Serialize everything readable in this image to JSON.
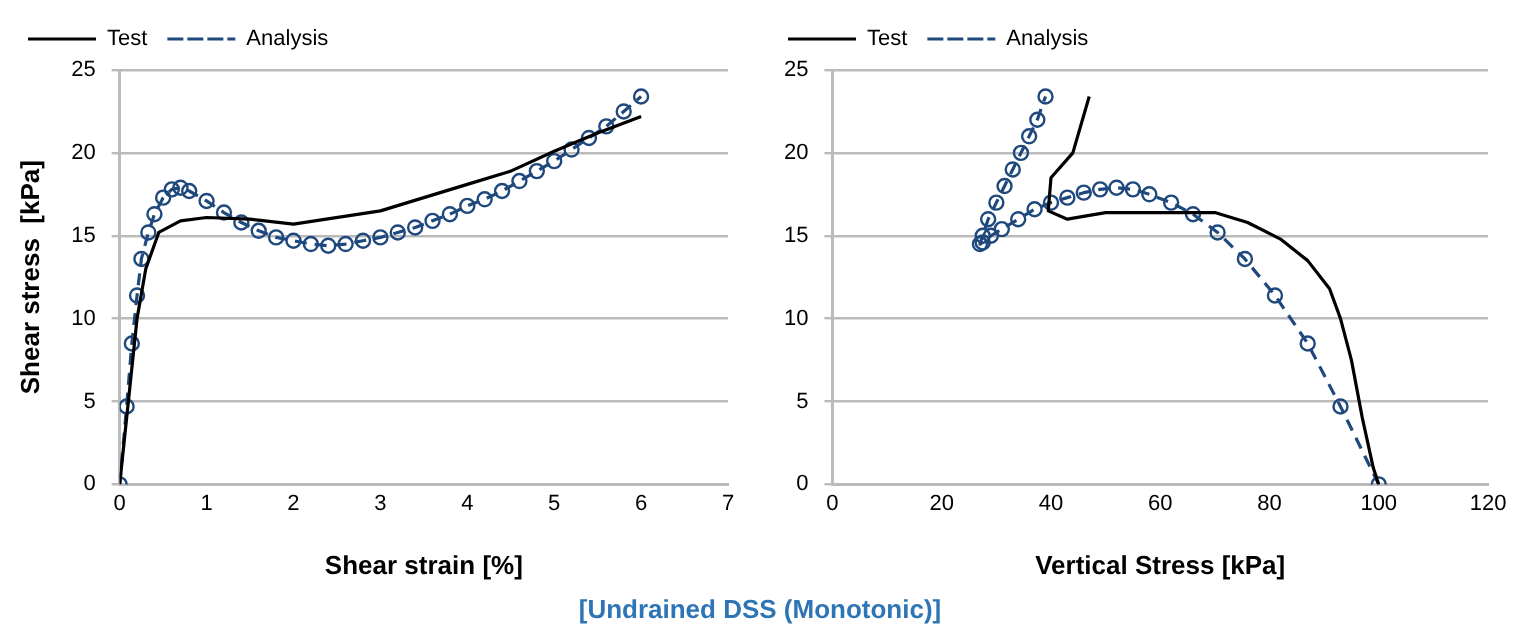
{
  "chart_data": [
    {
      "type": "line",
      "xlabel": "Shear strain [%]",
      "ylabel": "Shear stress  [kPa]",
      "xlim": [
        0,
        7
      ],
      "xticks": [
        0,
        1,
        2,
        3,
        4,
        5,
        6,
        7
      ],
      "ylim": [
        0,
        25
      ],
      "yticks": [
        0,
        5,
        10,
        15,
        20,
        25
      ],
      "grid": "y",
      "legend": "top left",
      "annotations": [
        "[Undrained DSS (Monotonic)]"
      ],
      "series": [
        {
          "name": "Test",
          "color": "#000000",
          "line_style": "solid",
          "marker": "none",
          "x": [
            0,
            0.1,
            0.2,
            0.3,
            0.45,
            0.7,
            1,
            1.5,
            2,
            3,
            4,
            4.5,
            5,
            5.5,
            6
          ],
          "values": [
            0,
            5,
            10,
            13,
            15.2,
            15.9,
            16.1,
            16,
            15.7,
            16.5,
            18.1,
            18.9,
            20.1,
            21.2,
            22.2
          ]
        },
        {
          "name": "Analysis",
          "color": "#1f497d",
          "line_style": "dashed",
          "marker": "circle",
          "x": [
            0,
            0.08,
            0.14,
            0.2,
            0.25,
            0.33,
            0.4,
            0.5,
            0.6,
            0.7,
            0.8,
            1,
            1.2,
            1.4,
            1.6,
            1.8,
            2,
            2.2,
            2.4,
            2.6,
            2.8,
            3,
            3.2,
            3.4,
            3.6,
            3.8,
            4,
            4.2,
            4.4,
            4.6,
            4.8,
            5,
            5.2,
            5.4,
            5.6,
            5.8,
            6
          ],
          "values": [
            0,
            4.7,
            8.5,
            11.4,
            13.6,
            15.2,
            16.3,
            17.3,
            17.8,
            17.9,
            17.7,
            17.1,
            16.4,
            15.8,
            15.3,
            14.9,
            14.7,
            14.5,
            14.4,
            14.5,
            14.7,
            14.9,
            15.2,
            15.5,
            15.9,
            16.3,
            16.8,
            17.2,
            17.7,
            18.3,
            18.9,
            19.5,
            20.2,
            20.9,
            21.6,
            22.5,
            23.4
          ]
        }
      ]
    },
    {
      "type": "line",
      "xlabel": "Vertical Stress [kPa]",
      "xlim": [
        0,
        120
      ],
      "xticks": [
        0,
        20,
        40,
        60,
        80,
        100,
        120
      ],
      "ylim": [
        0,
        25
      ],
      "yticks": [
        0,
        5,
        10,
        15,
        20,
        25
      ],
      "grid": "y",
      "legend": "top left",
      "series": [
        {
          "name": "Test",
          "color": "#000000",
          "line_style": "solid",
          "marker": "none",
          "x": [
            100,
            99,
            97,
            95,
            93,
            91,
            87,
            82,
            76,
            70,
            62,
            50,
            43,
            39.5,
            40,
            44,
            47
          ],
          "values": [
            0,
            1,
            4,
            7.5,
            10,
            11.8,
            13.5,
            14.8,
            15.8,
            16.4,
            16.4,
            16.4,
            16,
            16.5,
            18.5,
            20,
            23.4
          ]
        },
        {
          "name": "Analysis",
          "color": "#1f497d",
          "line_style": "dashed",
          "marker": "circle",
          "x": [
            100,
            93,
            87,
            81,
            75.5,
            70.5,
            66,
            62,
            58,
            55,
            52,
            49,
            46,
            43,
            40,
            37,
            34,
            31,
            29,
            27.5,
            27,
            27.5,
            28.5,
            30,
            31.5,
            33,
            34.5,
            36,
            37.5,
            39
          ],
          "values": [
            0,
            4.7,
            8.5,
            11.4,
            13.6,
            15.2,
            16.3,
            17,
            17.5,
            17.8,
            17.9,
            17.8,
            17.6,
            17.3,
            17,
            16.6,
            16,
            15.4,
            15,
            14.6,
            14.5,
            15,
            16,
            17,
            18,
            19,
            20,
            21,
            22,
            23.4
          ]
        }
      ]
    }
  ]
}
